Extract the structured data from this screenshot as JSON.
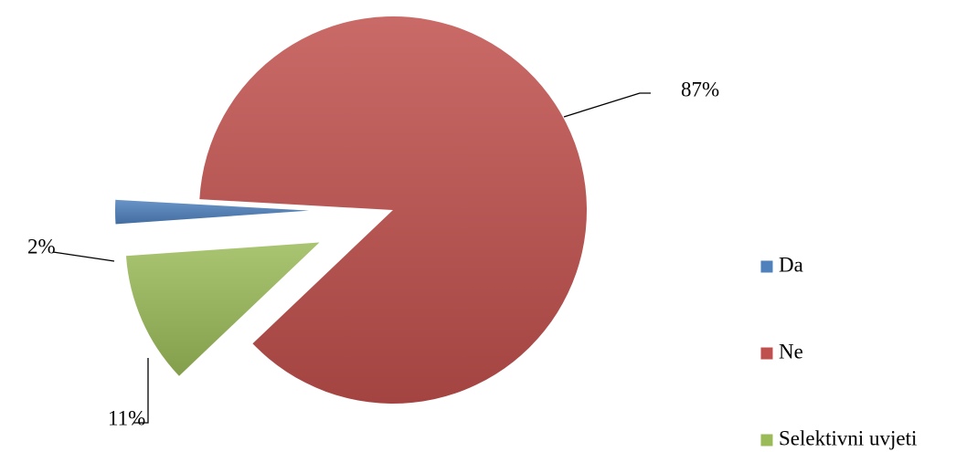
{
  "chart_data": {
    "type": "pie",
    "categories": [
      "Da",
      "Ne",
      "Selektivni uvjeti"
    ],
    "values": [
      2,
      87,
      11
    ],
    "value_labels": [
      "2%",
      "87%",
      "11%"
    ],
    "colors": [
      "#4f81bd",
      "#c0504d",
      "#9bbb59"
    ],
    "legend": "right"
  }
}
